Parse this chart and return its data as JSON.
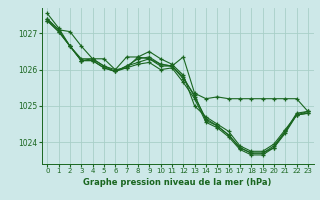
{
  "background_color": "#cde8e8",
  "grid_color": "#a8cfc8",
  "line_color": "#1a6620",
  "title": "Graphe pression niveau de la mer (hPa)",
  "xlim": [
    -0.5,
    23.5
  ],
  "ylim": [
    1023.4,
    1027.7
  ],
  "yticks": [
    1024,
    1025,
    1026,
    1027
  ],
  "xticks": [
    0,
    1,
    2,
    3,
    4,
    5,
    6,
    7,
    8,
    9,
    10,
    11,
    12,
    13,
    14,
    15,
    16,
    17,
    18,
    19,
    20,
    21,
    22,
    23
  ],
  "series": [
    [
      1027.55,
      1027.15,
      1026.65,
      1026.3,
      1026.3,
      1026.1,
      1026.0,
      1026.35,
      1026.35,
      1026.5,
      1026.3,
      1026.15,
      1025.85,
      1025.0,
      1024.7,
      1024.5,
      1024.3,
      1023.9,
      1023.75,
      1023.75,
      1023.95,
      1024.35,
      1024.75,
      1024.85
    ],
    [
      1027.35,
      1027.05,
      1026.65,
      1026.25,
      1026.25,
      1026.05,
      1025.95,
      1026.1,
      1026.2,
      1026.3,
      1026.1,
      1026.1,
      1025.75,
      1025.3,
      1024.6,
      1024.45,
      1024.2,
      1023.85,
      1023.7,
      1023.7,
      1023.85,
      1024.3,
      1024.75,
      1024.8
    ],
    [
      1027.35,
      1027.05,
      1026.65,
      1026.25,
      1026.25,
      1026.05,
      1025.95,
      1026.05,
      1026.15,
      1026.2,
      1026.0,
      1026.05,
      1025.65,
      1025.2,
      1024.55,
      1024.4,
      1024.15,
      1023.8,
      1023.65,
      1023.65,
      1023.85,
      1024.25,
      1024.75,
      1024.8
    ],
    [
      1027.4,
      1027.1,
      1026.65,
      1026.25,
      1026.3,
      1026.1,
      1025.95,
      1026.1,
      1026.3,
      1026.35,
      1026.15,
      1026.1,
      1025.8,
      1025.25,
      1024.65,
      1024.45,
      1024.2,
      1023.85,
      1023.7,
      1023.7,
      1023.9,
      1024.3,
      1024.8,
      1024.85
    ]
  ],
  "series_top": [
    1027.4,
    1027.05,
    1027.05,
    1026.6,
    1026.3,
    1026.35,
    1026.0,
    1026.05,
    1026.35,
    1026.3,
    1026.2,
    1026.1,
    1026.35,
    1025.35,
    1025.25,
    1025.3,
    1025.2,
    1025.2,
    1025.2,
    1025.2,
    1025.2,
    1025.2,
    1025.2,
    1024.85
  ]
}
